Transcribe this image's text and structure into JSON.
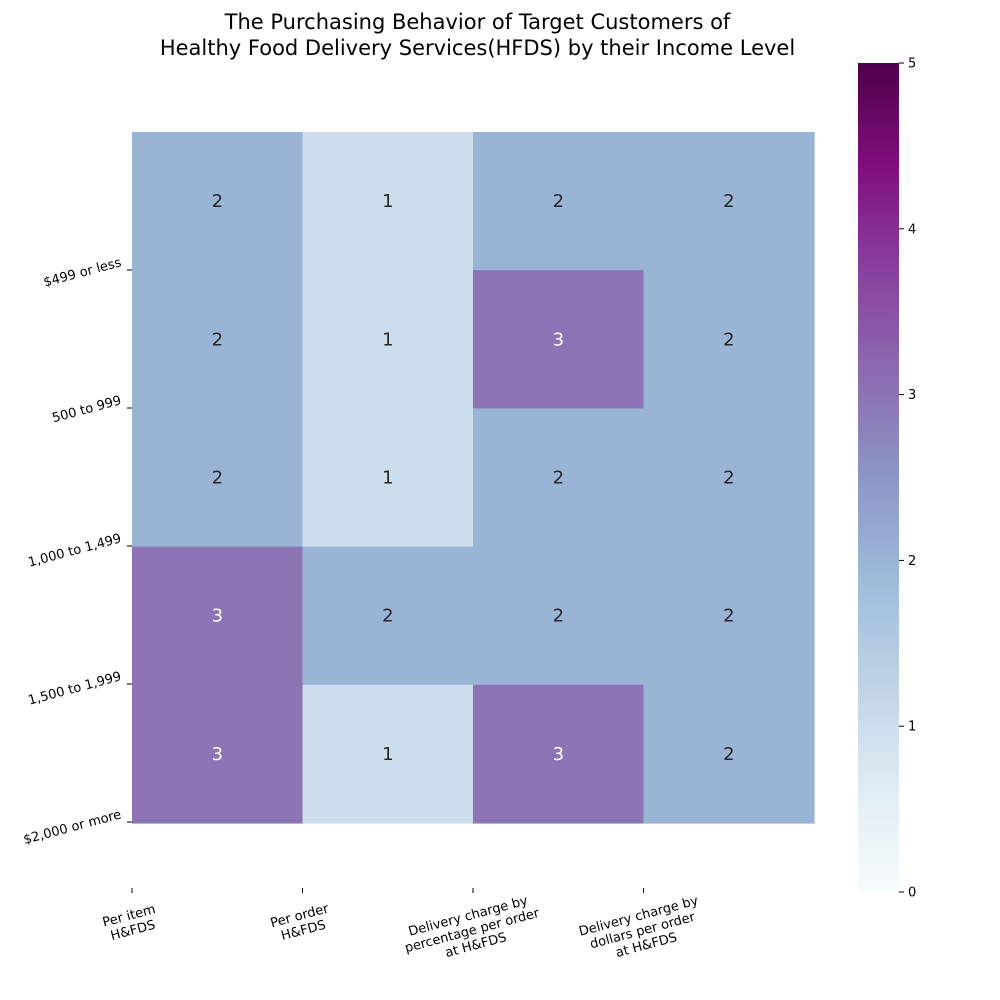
{
  "chart_data": {
    "type": "heatmap",
    "title": [
      "The Purchasing Behavior of Target Customers of",
      "Healthy Food Delivery Services(HFDS) by their Income Level"
    ],
    "rows": [
      "$499 or less",
      "500 to 999",
      "1,000 to 1,499",
      "1,500 to 1,999",
      "$2,000 or more"
    ],
    "columns": [
      [
        "Per item",
        "H&FDS"
      ],
      [
        "Per order",
        "H&FDS"
      ],
      [
        "Delivery charge by",
        "percentage per order",
        "at H&FDS"
      ],
      [
        "Delivery charge by",
        "dollars per order",
        "at H&FDS"
      ]
    ],
    "values": [
      [
        2,
        1,
        2,
        2
      ],
      [
        2,
        1,
        3,
        2
      ],
      [
        2,
        1,
        2,
        2
      ],
      [
        3,
        2,
        2,
        2
      ],
      [
        3,
        1,
        3,
        2
      ]
    ],
    "colorscale": "BuPu",
    "vmin": 0,
    "vmax": 5,
    "colorbar_ticks": [
      0,
      1,
      2,
      3,
      4,
      5
    ]
  }
}
